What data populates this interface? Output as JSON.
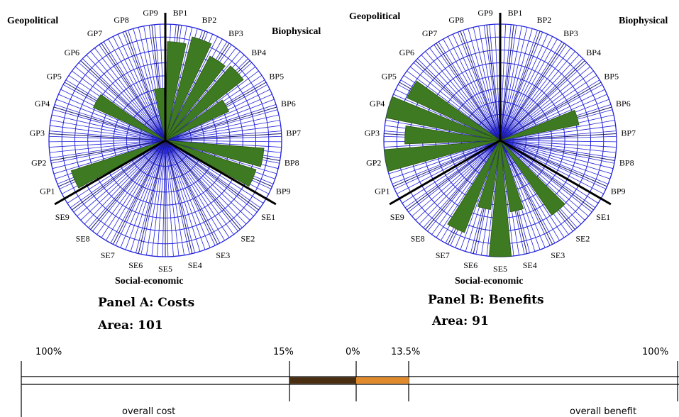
{
  "chart_data": [
    {
      "type": "radar",
      "panel": "A",
      "title": "Panel A: Costs",
      "area_label": "Area: 101",
      "category_labels": {
        "top_left": "Geopolitical",
        "top_right": "Biophysical",
        "bottom": "Social-economic"
      },
      "spokes": [
        "BP1",
        "BP2",
        "BP3",
        "BP4",
        "BP5",
        "BP6",
        "BP7",
        "BP8",
        "BP9",
        "SE1",
        "SE2",
        "SE3",
        "SE4",
        "SE5",
        "SE6",
        "SE7",
        "SE8",
        "SE9",
        "GP1",
        "GP2",
        "GP3",
        "GP4",
        "GP5",
        "GP6",
        "GP7",
        "GP8",
        "GP9"
      ],
      "values": [
        0.85,
        0.92,
        0.82,
        0.85,
        0.6,
        0,
        0,
        0.85,
        0.82,
        0,
        0,
        0,
        0,
        0,
        0,
        0,
        0,
        0,
        0.85,
        0,
        0,
        0,
        0.68,
        0,
        0,
        0,
        0.45
      ],
      "max": 1
    },
    {
      "type": "radar",
      "panel": "B",
      "title": "Panel B: Benefits",
      "area_label": "Area: 91",
      "category_labels": {
        "top_left": "Geopolitical",
        "top_right": "Biophysical",
        "bottom": "Social-economic"
      },
      "spokes": [
        "BP1",
        "BP2",
        "BP3",
        "BP4",
        "BP5",
        "BP6",
        "BP7",
        "BP8",
        "BP9",
        "SE1",
        "SE2",
        "SE3",
        "SE4",
        "SE5",
        "SE6",
        "SE7",
        "SE8",
        "SE9",
        "GP1",
        "GP2",
        "GP3",
        "GP4",
        "GP5",
        "GP6",
        "GP7",
        "GP8",
        "GP9"
      ],
      "values": [
        0,
        0,
        0,
        0,
        0,
        0.69,
        0,
        0,
        0,
        0,
        0.78,
        0,
        0.62,
        1.0,
        0.6,
        0.85,
        0,
        0,
        0,
        1.0,
        0.82,
        1.0,
        0.88,
        0,
        0,
        0,
        0
      ],
      "max": 1
    }
  ],
  "scale": {
    "labels": {
      "cost_end": "100%",
      "cost_mark": "15%",
      "zero": "0%",
      "benefit_mark": "13.5%",
      "benefit_end": "100%"
    },
    "captions": {
      "cost": "overall cost",
      "benefit": "overall benefit"
    },
    "cost_fraction": 0.15,
    "benefit_fraction": 0.135,
    "colors": {
      "cost_bar": "#4a2e12",
      "benefit_bar": "#e08a2c"
    }
  },
  "colors": {
    "grid": "#2222dd",
    "wedge": "#3e7a22",
    "divider": "#000000"
  }
}
